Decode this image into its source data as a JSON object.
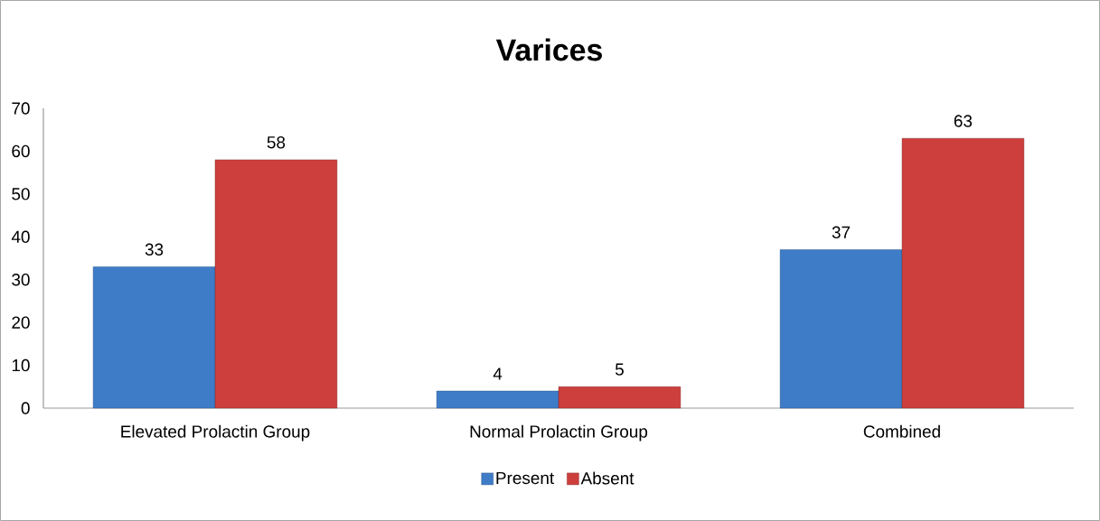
{
  "chart_data": {
    "type": "bar",
    "title": "Varices",
    "categories": [
      "Elevated Prolactin Group",
      "Normal Prolactin Group",
      "Combined"
    ],
    "series": [
      {
        "name": "Present",
        "color": "#3f7cc8",
        "values": [
          33,
          4,
          37
        ]
      },
      {
        "name": "Absent",
        "color": "#cc3f3c",
        "values": [
          58,
          5,
          63
        ]
      }
    ],
    "ylim": [
      0,
      70
    ],
    "yticks": [
      0,
      10,
      20,
      30,
      40,
      50,
      60,
      70
    ],
    "grid": false,
    "legend": "bottom",
    "data_labels": true
  }
}
